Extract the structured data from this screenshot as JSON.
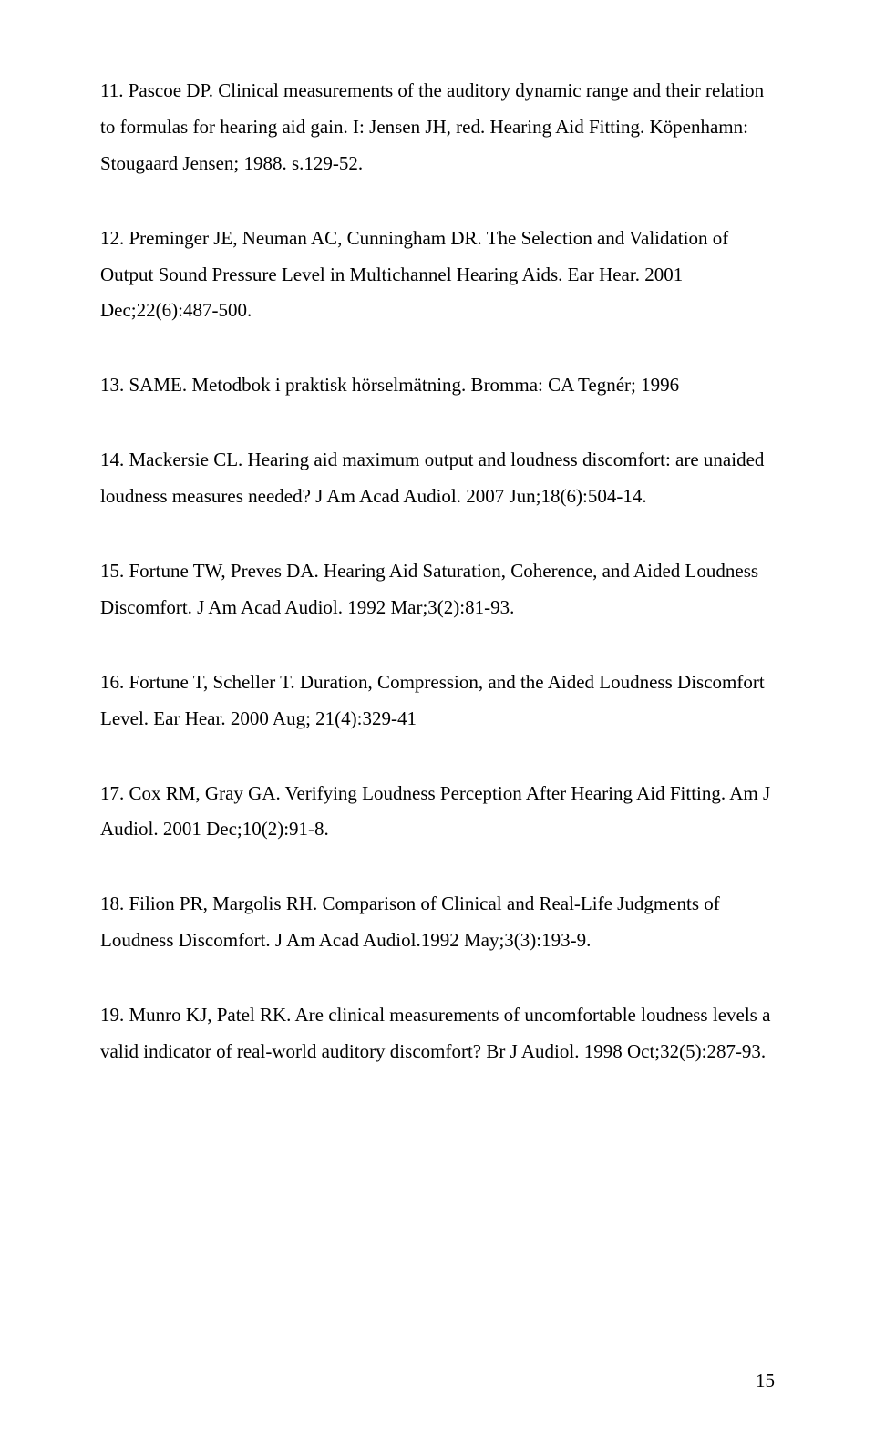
{
  "references": [
    {
      "text": "11. Pascoe DP. Clinical measurements of the auditory dynamic range and their relation to formulas for hearing aid gain. I: Jensen JH, red. Hearing Aid Fitting. Köpenhamn: Stougaard Jensen; 1988. s.129-52."
    },
    {
      "text": "12. Preminger JE, Neuman AC, Cunningham DR. The Selection and Validation of Output Sound Pressure Level in Multichannel Hearing Aids. Ear Hear. 2001 Dec;22(6):487-500."
    },
    {
      "text": "13. SAME. Metodbok i praktisk hörselmätning. Bromma: CA Tegnér; 1996"
    },
    {
      "text": "14. Mackersie CL. Hearing aid maximum output and loudness discomfort: are unaided loudness measures needed? J Am Acad Audiol. 2007 Jun;18(6):504-14."
    },
    {
      "text": "15. Fortune TW, Preves DA. Hearing Aid Saturation, Coherence, and Aided Loudness Discomfort. J Am Acad Audiol. 1992 Mar;3(2):81-93."
    },
    {
      "text": "16. Fortune T, Scheller T. Duration, Compression, and the Aided Loudness Discomfort Level. Ear Hear. 2000 Aug; 21(4):329-41"
    },
    {
      "text": "17. Cox RM, Gray GA. Verifying Loudness Perception After Hearing Aid Fitting. Am J Audiol. 2001 Dec;10(2):91-8."
    },
    {
      "text": "18. Filion PR, Margolis RH. Comparison of Clinical and Real-Life Judgments of Loudness Discomfort. J Am Acad Audiol.1992 May;3(3):193-9."
    },
    {
      "text": "19. Munro KJ, Patel RK. Are clinical measurements of uncomfortable loudness levels a valid indicator of real-world auditory discomfort? Br J Audiol. 1998 Oct;32(5):287-93."
    }
  ],
  "page_number": "15"
}
